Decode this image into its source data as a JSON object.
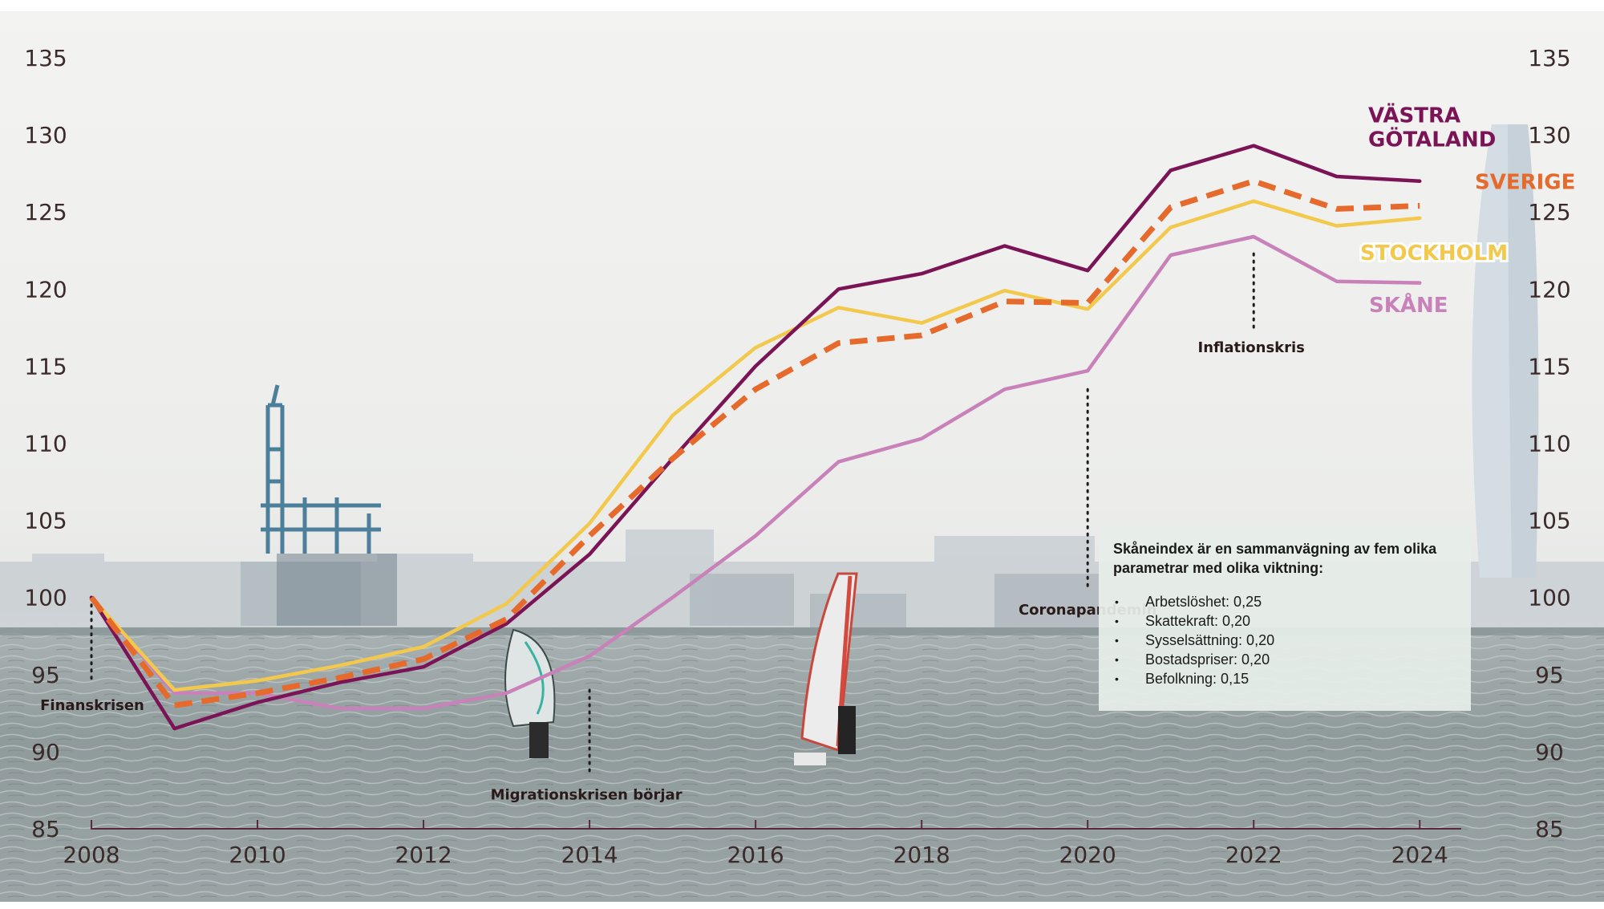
{
  "chart_data": {
    "type": "line",
    "title": "",
    "xlabel": "",
    "ylabel": "",
    "x": [
      2008,
      2009,
      2010,
      2011,
      2012,
      2013,
      2014,
      2015,
      2016,
      2017,
      2018,
      2019,
      2020,
      2021,
      2022,
      2023,
      2024
    ],
    "ylim": [
      85,
      135
    ],
    "xlim": [
      2008,
      2024.5
    ],
    "yticks": [
      85,
      90,
      95,
      100,
      105,
      110,
      115,
      120,
      125,
      130,
      135
    ],
    "xticks": [
      2008,
      2010,
      2012,
      2014,
      2016,
      2018,
      2020,
      2022,
      2024
    ],
    "series": [
      {
        "name": "VÄSTRA GÖTALAND",
        "label_lines": [
          "VÄSTRA",
          "GÖTALAND"
        ],
        "color": "#7a1456",
        "dashed": false,
        "values": [
          100,
          91.5,
          93.2,
          94.5,
          95.5,
          98.3,
          102.8,
          109.0,
          115.0,
          120.0,
          121.0,
          122.8,
          121.2,
          127.7,
          129.3,
          127.3,
          127.0
        ]
      },
      {
        "name": "SVERIGE",
        "label_lines": [
          "SVERIGE"
        ],
        "color": "#e56a2c",
        "dashed": true,
        "values": [
          100,
          93.0,
          93.8,
          94.8,
          96.0,
          98.6,
          104.0,
          109.0,
          113.5,
          116.5,
          117.0,
          119.2,
          119.1,
          125.3,
          127.0,
          125.2,
          125.4
        ]
      },
      {
        "name": "STOCKHOLM",
        "label_lines": [
          "STOCKHOLM"
        ],
        "color": "#f2c94c",
        "dashed": false,
        "values": [
          100,
          94.0,
          94.6,
          95.6,
          96.8,
          99.6,
          104.8,
          111.8,
          116.2,
          118.8,
          117.8,
          119.9,
          118.7,
          124.0,
          125.7,
          124.1,
          124.6
        ]
      },
      {
        "name": "SKÅNE",
        "label_lines": [
          "SKÅNE"
        ],
        "color": "#c882b9",
        "dashed": false,
        "values": [
          100,
          93.8,
          93.8,
          92.8,
          92.8,
          93.8,
          96.2,
          100.0,
          104.0,
          108.8,
          110.3,
          113.5,
          114.7,
          122.2,
          123.4,
          120.5,
          120.4
        ]
      }
    ],
    "annotations": [
      {
        "text": "Finanskrisen",
        "year": 2008,
        "from": 100,
        "to": 94.5
      },
      {
        "text": "Migrationskrisen börjar",
        "year": 2014,
        "from": 94.0,
        "to": 88.5
      },
      {
        "text": "Coronapandemin",
        "year": 2020,
        "from": 113.5,
        "to": 100.5
      },
      {
        "text": "Inflationskris",
        "year": 2022,
        "from": 122.3,
        "to": 117.2
      }
    ]
  },
  "info_box": {
    "title": "Skåneindex är en sammanvägning av fem olika parametrar med olika viktning:",
    "items": [
      "Arbetslöshet: 0,25",
      "Skattekraft: 0,20",
      "Sysselsättning: 0,20",
      "Bostadspriser: 0,20",
      "Befolkning: 0,15"
    ]
  }
}
